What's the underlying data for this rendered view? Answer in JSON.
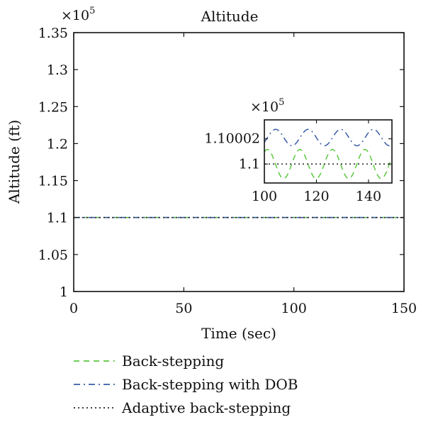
{
  "chart_data": [
    {
      "type": "line",
      "title": "Altitude",
      "xlabel": "Time (sec)",
      "ylabel": "Altitude (ft)",
      "multiplier": "×10",
      "multiplier_exp": "5",
      "xlim": [
        0,
        150
      ],
      "ylim": [
        1.0,
        1.35
      ],
      "xticks": [
        0,
        50,
        100,
        150
      ],
      "xtick_labels": [
        "0",
        "50",
        "100",
        "150"
      ],
      "yticks": [
        1.0,
        1.05,
        1.1,
        1.15,
        1.2,
        1.25,
        1.3,
        1.35
      ],
      "ytick_labels": [
        "1",
        "1.05",
        "1.1",
        "1.15",
        "1.2",
        "1.25",
        "1.3",
        "1.35"
      ],
      "grid": false,
      "legend_placement": "below",
      "series": [
        {
          "name": "Back-stepping",
          "color": "#5cc840",
          "dash": "dashed",
          "x": [
            0,
            150
          ],
          "y": [
            1.1,
            1.1
          ]
        },
        {
          "name": "Back-stepping with DOB",
          "color": "#3a5ca8",
          "dash": "dashdot",
          "x": [
            0,
            150
          ],
          "y": [
            1.1,
            1.1
          ]
        },
        {
          "name": "Adaptive back-stepping",
          "color": "#222222",
          "dash": "dotted",
          "x": [
            0,
            150
          ],
          "y": [
            1.1,
            1.1
          ]
        }
      ]
    },
    {
      "type": "line",
      "role": "inset",
      "multiplier": "×10",
      "multiplier_exp": "5",
      "xlim": [
        100,
        149
      ],
      "ylim": [
        1.099985,
        1.100035
      ],
      "xticks": [
        100,
        120,
        140
      ],
      "xtick_labels": [
        "100",
        "120",
        "140"
      ],
      "yticks": [
        1.1,
        1.10002
      ],
      "ytick_labels": [
        "1.1",
        "1.10002"
      ],
      "series": [
        {
          "name": "Back-stepping",
          "color": "#5cc840",
          "dash": "dashed",
          "mean": 1.1,
          "amplitude": 1.15e-05,
          "period": 12.5,
          "phase": 1.0
        },
        {
          "name": "Back-stepping with DOB",
          "color": "#3a5ca8",
          "dash": "dashdot",
          "mean": 1.100021,
          "amplitude": 6.5e-06,
          "period": 12.5,
          "phase": -0.6
        },
        {
          "name": "Adaptive back-stepping",
          "color": "#222222",
          "dash": "dotted",
          "mean": 1.1,
          "amplitude": 0,
          "period": 12.5,
          "phase": 0
        }
      ]
    }
  ]
}
